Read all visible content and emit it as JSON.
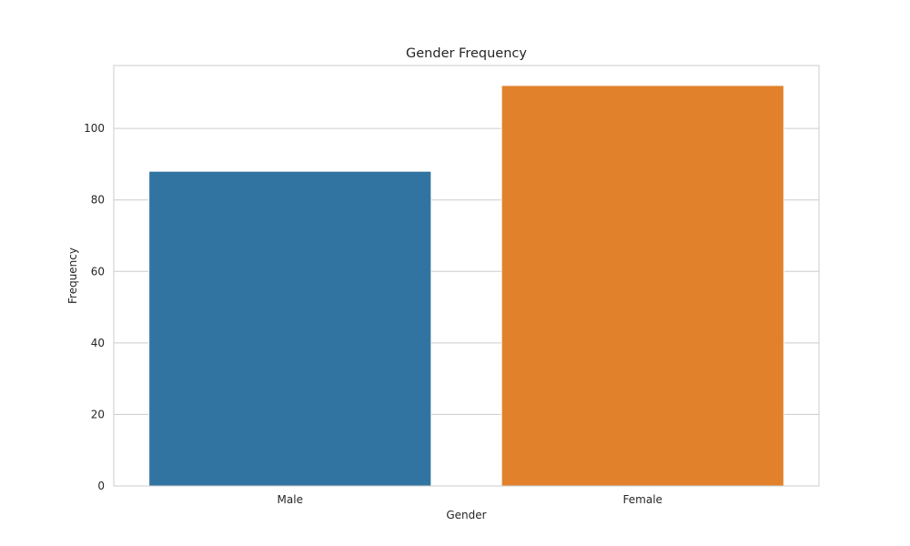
{
  "chart_data": {
    "type": "bar",
    "title": "Gender Frequency",
    "xlabel": "Gender",
    "ylabel": "Frequency",
    "categories": [
      "Male",
      "Female"
    ],
    "values": [
      88,
      112
    ],
    "colors": [
      "#3274a1",
      "#e1812c"
    ],
    "ylim": [
      0,
      117.6
    ],
    "yticks": [
      0,
      20,
      40,
      60,
      80,
      100
    ],
    "grid": "y-horizontal",
    "legend": "none"
  }
}
